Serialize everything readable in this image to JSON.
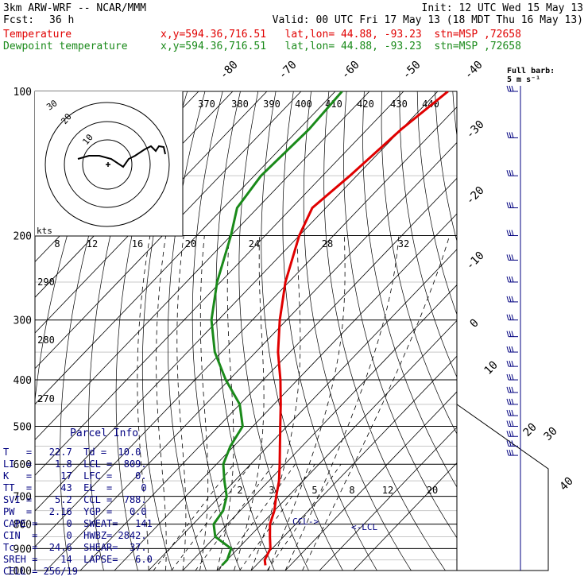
{
  "header": {
    "model": "3km ARW-WRF -- NCAR/MMM",
    "init": "Init: 12 UTC Wed 15 May 13",
    "fcst_label": "Fcst:",
    "fcst_value": "36 h",
    "valid": "Valid: 00 UTC Fri 17 May 13 (18 MDT Thu 16 May 13)"
  },
  "legend": {
    "temperature": {
      "label": "Temperature",
      "info": "x,y=594.36,716.51   lat,lon= 44.88, -93.23  stn=MSP ,72658",
      "color": "#e00000"
    },
    "dewpoint": {
      "label": "Dewpoint temperature",
      "info": "x,y=594.36,716.51   lat,lon= 44.88, -93.23  stn=MSP ,72658",
      "color": "#1a8a1a"
    }
  },
  "barb_legend": {
    "line1": "Full barb:",
    "line2": "5 m s⁻¹"
  },
  "parcel_info": {
    "title": "Parcel Info",
    "rows": [
      "T   =   22.7  Td =  10.0",
      "LI  =    1.8  LCL =  809.",
      "K   =     17  LFC =    0.",
      "TT  =     43  EL  =     0",
      "SVI =    5.2  CCL =  788.",
      "PW  =   2.16  YGP =   0.0",
      "CAPE =     0  SWEAT=   141",
      "CIN  =     0  HWBZ= 2842.",
      "Tc   =  24.6  SHEAR=  37.",
      "SREH =    14  LAPSE=   6.0",
      "CELL = 256/19"
    ]
  },
  "labels": {
    "ccl": "CCL->",
    "lcl": "<-LCL",
    "kts": "kts"
  },
  "chart_data": {
    "type": "skew-t log-p",
    "pressure_axis": {
      "min": 100,
      "max": 1000,
      "scale": "log",
      "ticks": [
        100,
        200,
        300,
        400,
        500,
        600,
        700,
        800,
        900,
        1000
      ]
    },
    "isotherm_labels": [
      -80,
      -70,
      -60,
      -50,
      -40,
      -30,
      -20,
      -10,
      0,
      10,
      20,
      30,
      40
    ],
    "theta_labels": [
      370,
      380,
      390,
      400,
      410,
      420,
      430,
      440
    ],
    "theta_low_labels": [
      290,
      280,
      270
    ],
    "mixing_ratio_labels": [
      "2",
      "3",
      "5",
      "8",
      "12",
      "20"
    ],
    "hodograph": {
      "ring_labels": [
        "30",
        "20",
        "10"
      ],
      "speed_labels": [
        "8",
        "12",
        "16",
        "20",
        "24",
        "28",
        "32"
      ],
      "speed_unit": "kts"
    },
    "series": [
      {
        "name": "Temperature",
        "color": "#e00000",
        "points": [
          [
            100,
            -57
          ],
          [
            120,
            -60
          ],
          [
            150,
            -62
          ],
          [
            175,
            -64
          ],
          [
            200,
            -60
          ],
          [
            250,
            -51
          ],
          [
            300,
            -42
          ],
          [
            350,
            -33.5
          ],
          [
            400,
            -25
          ],
          [
            450,
            -18
          ],
          [
            500,
            -12
          ],
          [
            550,
            -6.5
          ],
          [
            600,
            -1.5
          ],
          [
            650,
            3
          ],
          [
            700,
            6.5
          ],
          [
            750,
            10
          ],
          [
            800,
            12.5
          ],
          [
            850,
            16
          ],
          [
            900,
            19.5
          ],
          [
            950,
            21
          ],
          [
            975,
            22.7
          ]
        ]
      },
      {
        "name": "Dewpoint temperature",
        "color": "#1a8a1a",
        "points": [
          [
            100,
            -88
          ],
          [
            120,
            -87
          ],
          [
            150,
            -88
          ],
          [
            175,
            -86
          ],
          [
            200,
            -80
          ],
          [
            250,
            -71
          ],
          [
            300,
            -62
          ],
          [
            350,
            -52
          ],
          [
            400,
            -41
          ],
          [
            450,
            -30
          ],
          [
            500,
            -23
          ],
          [
            550,
            -21
          ],
          [
            600,
            -18
          ],
          [
            650,
            -13
          ],
          [
            700,
            -8
          ],
          [
            750,
            -5
          ],
          [
            800,
            -4
          ],
          [
            850,
            0
          ],
          [
            900,
            8
          ],
          [
            950,
            10
          ],
          [
            975,
            10
          ]
        ]
      }
    ]
  }
}
